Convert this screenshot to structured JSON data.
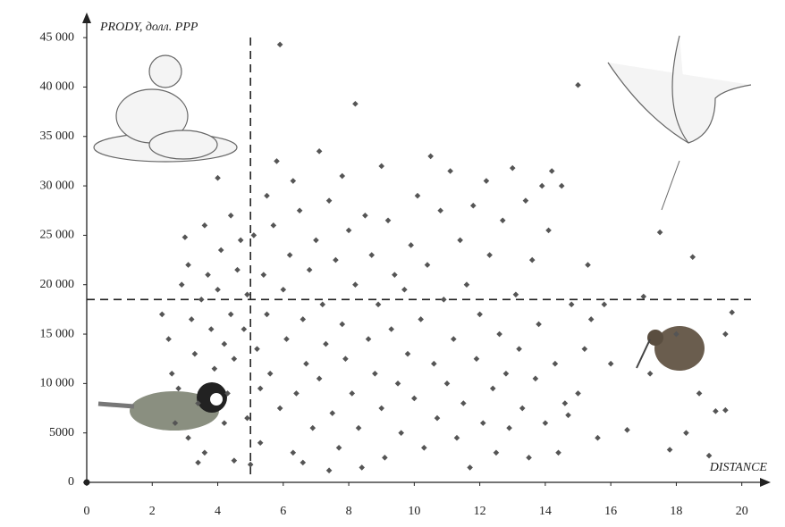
{
  "chart_data": {
    "type": "scatter",
    "x_label": "DISTANCE",
    "y_label": "PRODY, долл. PPP",
    "color": "#555555",
    "xlim": [
      0,
      20.8
    ],
    "ylim": [
      0,
      47000
    ],
    "xticks": [
      0,
      2,
      4,
      6,
      8,
      10,
      12,
      14,
      16,
      18,
      20
    ],
    "yticks": [
      0,
      5000,
      {
        "value": 10000,
        "label": "10 000"
      },
      {
        "value": 15000,
        "label": "15 000"
      },
      {
        "value": 20000,
        "label": "20 000"
      },
      {
        "value": 25000,
        "label": "25 000"
      },
      {
        "value": 30000,
        "label": "30 000"
      },
      {
        "value": 35000,
        "label": "35 000"
      },
      {
        "value": 40000,
        "label": "40 000"
      },
      {
        "value": 45000,
        "label": "45 000"
      }
    ],
    "reference_lines": {
      "x": 5,
      "y": 18500
    },
    "x": [
      2.3,
      2.5,
      2.6,
      2.8,
      2.9,
      3.0,
      3.1,
      3.2,
      3.3,
      3.4,
      3.4,
      3.5,
      3.6,
      3.7,
      3.8,
      3.9,
      4.0,
      4.0,
      4.1,
      4.2,
      4.3,
      4.4,
      4.4,
      4.5,
      4.5,
      4.6,
      4.7,
      4.8,
      4.9,
      4.9,
      5.1,
      5.2,
      5.3,
      5.3,
      5.4,
      5.5,
      5.5,
      5.6,
      5.7,
      5.8,
      5.9,
      5.9,
      6.0,
      6.1,
      6.2,
      6.3,
      6.3,
      6.4,
      6.5,
      6.6,
      6.7,
      6.8,
      6.9,
      7.0,
      7.1,
      7.1,
      7.2,
      7.3,
      7.4,
      7.5,
      7.6,
      7.7,
      7.8,
      7.8,
      7.9,
      8.0,
      8.1,
      8.2,
      8.2,
      8.3,
      8.4,
      8.5,
      8.6,
      8.7,
      8.8,
      8.9,
      9.0,
      9.0,
      9.1,
      9.2,
      9.3,
      9.4,
      9.5,
      9.6,
      9.7,
      9.8,
      9.9,
      10.0,
      10.1,
      10.2,
      10.3,
      10.4,
      10.5,
      10.6,
      10.7,
      10.8,
      10.9,
      11.0,
      11.1,
      11.2,
      11.3,
      11.4,
      11.5,
      11.6,
      11.7,
      11.8,
      11.9,
      12.0,
      12.1,
      12.2,
      12.3,
      12.4,
      12.5,
      12.6,
      12.7,
      12.8,
      12.9,
      13.0,
      13.1,
      13.2,
      13.3,
      13.4,
      13.5,
      13.6,
      13.7,
      13.8,
      13.9,
      14.0,
      14.1,
      14.2,
      14.3,
      14.4,
      14.5,
      14.6,
      14.7,
      14.8,
      15.0,
      15.0,
      15.2,
      15.3,
      15.4,
      15.6,
      15.8,
      16.0,
      16.5,
      17.0,
      17.2,
      17.5,
      17.8,
      18.0,
      18.3,
      18.5,
      18.7,
      19.0,
      19.2,
      19.5,
      19.5,
      19.7,
      2.7,
      3.1,
      3.6,
      4.2,
      5.0,
      6.6,
      7.4
    ],
    "values": [
      17000,
      14500,
      11000,
      9500,
      20000,
      24800,
      22000,
      16500,
      13000,
      8000,
      2000,
      18500,
      26000,
      21000,
      15500,
      11500,
      30800,
      19500,
      23500,
      14000,
      9000,
      27000,
      17000,
      12500,
      2200,
      21500,
      24500,
      15500,
      19000,
      6500,
      25000,
      13500,
      9500,
      4000,
      21000,
      29000,
      17000,
      11000,
      26000,
      32500,
      44300,
      7500,
      19500,
      14500,
      23000,
      30500,
      3000,
      9000,
      27500,
      16500,
      12000,
      21500,
      5500,
      24500,
      33500,
      10500,
      18000,
      14000,
      28500,
      7000,
      22500,
      3500,
      31000,
      16000,
      12500,
      25500,
      9000,
      38300,
      20000,
      5500,
      1500,
      27000,
      14500,
      23000,
      11000,
      18000,
      32000,
      7500,
      2500,
      26500,
      15500,
      21000,
      10000,
      5000,
      19500,
      13000,
      24000,
      8500,
      29000,
      16500,
      3500,
      22000,
      33000,
      12000,
      6500,
      27500,
      18500,
      10000,
      31500,
      14500,
      4500,
      24500,
      8000,
      20000,
      1500,
      28000,
      12500,
      17000,
      6000,
      30500,
      23000,
      9500,
      3000,
      15000,
      26500,
      11000,
      5500,
      31800,
      19000,
      13500,
      7500,
      28500,
      2500,
      22500,
      10500,
      16000,
      30000,
      6000,
      25500,
      31500,
      12000,
      3000,
      30000,
      8000,
      6800,
      18000,
      40200,
      9000,
      13500,
      22000,
      16500,
      4500,
      18000,
      12000,
      5300,
      18800,
      11000,
      25300,
      3300,
      15000,
      5000,
      22800,
      9000,
      2700,
      7200,
      15000,
      7300,
      17200,
      6000,
      4500,
      3000,
      6000,
      1800,
      2000,
      1200
    ]
  }
}
